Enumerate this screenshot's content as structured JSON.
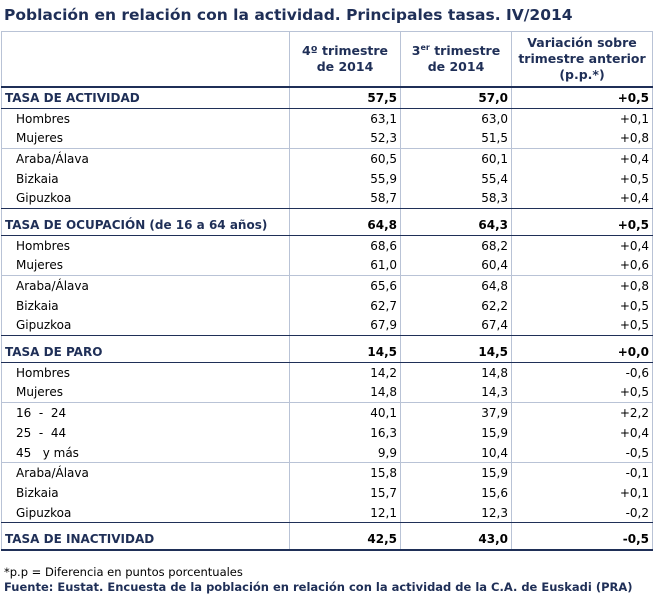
{
  "title": "Población en relación con la actividad. Principales tasas. IV/2014",
  "headers": {
    "col1": "",
    "col2_pre": "4º  trimestre",
    "col2_post": "de 2014",
    "col3_pre": "3",
    "col3_sup": "er",
    "col3_mid": " trimestre",
    "col3_post": "de 2014",
    "col4_l1": "Variación sobre",
    "col4_l2": "trimestre anterior",
    "col4_l3": "(p.p.*)"
  },
  "sections": [
    {
      "label": "TASA DE ACTIVIDAD",
      "values": [
        "57,5",
        "57,0",
        "+0,5"
      ],
      "groups": [
        [
          {
            "label": "Hombres",
            "values": [
              "63,1",
              "63,0",
              "+0,1"
            ]
          },
          {
            "label": "Mujeres",
            "values": [
              "52,3",
              "51,5",
              "+0,8"
            ]
          }
        ],
        [
          {
            "label": "Araba/Álava",
            "values": [
              "60,5",
              "60,1",
              "+0,4"
            ]
          },
          {
            "label": "Bizkaia",
            "values": [
              "55,9",
              "55,4",
              "+0,5"
            ]
          },
          {
            "label": "Gipuzkoa",
            "values": [
              "58,7",
              "58,3",
              "+0,4"
            ]
          }
        ]
      ]
    },
    {
      "label": "TASA DE OCUPACIÓN (de 16 a 64 años)",
      "values": [
        "64,8",
        "64,3",
        "+0,5"
      ],
      "groups": [
        [
          {
            "label": "Hombres",
            "values": [
              "68,6",
              "68,2",
              "+0,4"
            ]
          },
          {
            "label": "Mujeres",
            "values": [
              "61,0",
              "60,4",
              "+0,6"
            ]
          }
        ],
        [
          {
            "label": "Araba/Álava",
            "values": [
              "65,6",
              "64,8",
              "+0,8"
            ]
          },
          {
            "label": "Bizkaia",
            "values": [
              "62,7",
              "62,2",
              "+0,5"
            ]
          },
          {
            "label": "Gipuzkoa",
            "values": [
              "67,9",
              "67,4",
              "+0,5"
            ]
          }
        ]
      ]
    },
    {
      "label": "TASA DE PARO",
      "values": [
        "14,5",
        "14,5",
        "+0,0"
      ],
      "groups": [
        [
          {
            "label": "Hombres",
            "values": [
              "14,2",
              "14,8",
              "-0,6"
            ]
          },
          {
            "label": "Mujeres",
            "values": [
              "14,8",
              "14,3",
              "+0,5"
            ]
          }
        ],
        [
          {
            "label": "16  -  24",
            "values": [
              "40,1",
              "37,9",
              "+2,2"
            ]
          },
          {
            "label": "25  -  44",
            "values": [
              "16,3",
              "15,9",
              "+0,4"
            ]
          },
          {
            "label": "45   y más",
            "values": [
              "9,9",
              "10,4",
              "-0,5"
            ]
          }
        ],
        [
          {
            "label": "Araba/Álava",
            "values": [
              "15,8",
              "15,9",
              "-0,1"
            ]
          },
          {
            "label": "Bizkaia",
            "values": [
              "15,7",
              "15,6",
              "+0,1"
            ]
          },
          {
            "label": "Gipuzkoa",
            "values": [
              "12,1",
              "12,3",
              "-0,2"
            ]
          }
        ]
      ]
    },
    {
      "label": "TASA DE INACTIVIDAD",
      "values": [
        "42,5",
        "43,0",
        "-0,5"
      ],
      "groups": []
    }
  ],
  "note": "*p.p = Diferencia en puntos porcentuales",
  "source": "Fuente: Eustat. Encuesta de la población en relación con la actividad de la C.A. de Euskadi (PRA)",
  "colors": {
    "navy": "#1f2f57",
    "grid": "#b9c3d6"
  }
}
